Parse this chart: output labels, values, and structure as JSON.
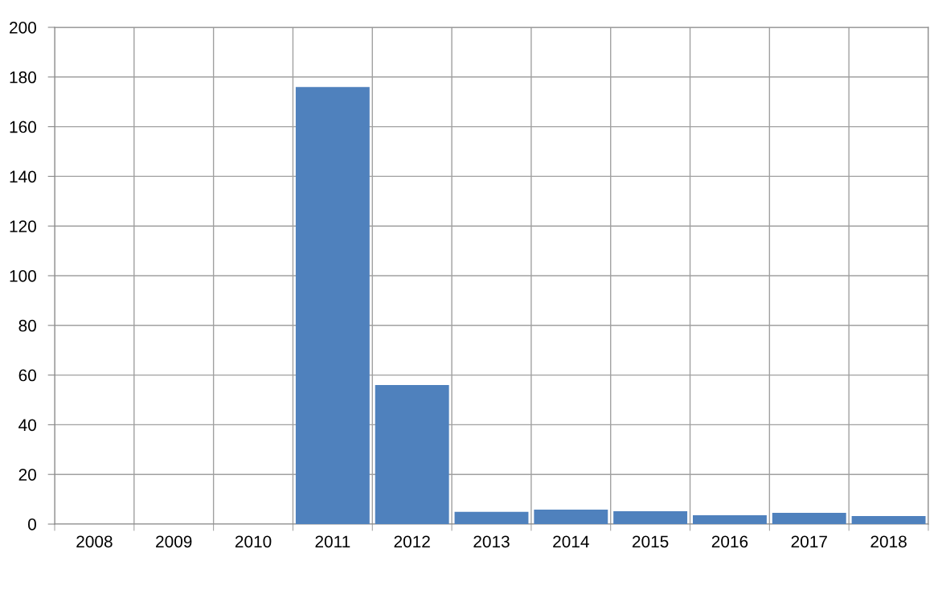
{
  "chart_data": {
    "type": "bar",
    "categories": [
      "2008",
      "2009",
      "2010",
      "2011",
      "2012",
      "2013",
      "2014",
      "2015",
      "2016",
      "2017",
      "2018"
    ],
    "values": [
      null,
      null,
      null,
      176,
      56,
      4.9,
      5.8,
      5.2,
      3.6,
      4.5,
      3.2
    ],
    "color": "#4f81bd",
    "ylim": [
      0,
      200
    ],
    "yticks": [
      0,
      20,
      40,
      60,
      80,
      100,
      120,
      140,
      160,
      180,
      200
    ],
    "grid": true
  }
}
